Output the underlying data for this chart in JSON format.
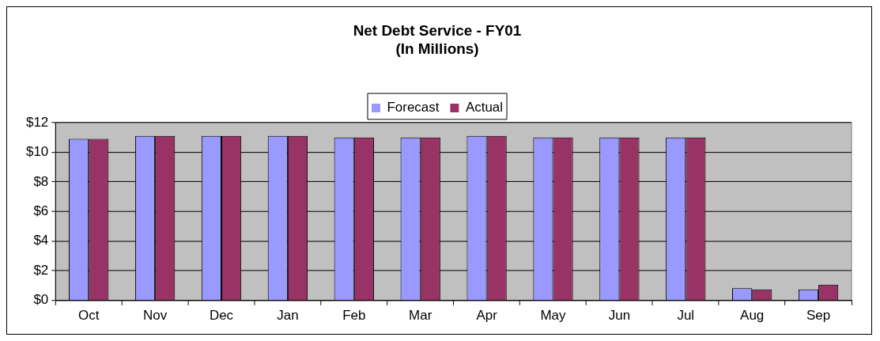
{
  "chart_data": {
    "type": "bar",
    "title": [
      "Net Debt Service - FY01",
      "(In Millions)"
    ],
    "categories": [
      "Oct",
      "Nov",
      "Dec",
      "Jan",
      "Feb",
      "Mar",
      "Apr",
      "May",
      "Jun",
      "Jul",
      "Aug",
      "Sep"
    ],
    "series": [
      {
        "name": "Forecast",
        "color": "#9999ff",
        "values": [
          10.9,
          11.1,
          11.1,
          11.1,
          11.0,
          11.0,
          11.1,
          11.0,
          11.0,
          11.0,
          0.83,
          0.75
        ]
      },
      {
        "name": "Actual",
        "color": "#993366",
        "values": [
          10.9,
          11.1,
          11.1,
          11.1,
          11.0,
          11.0,
          11.1,
          11.0,
          11.0,
          11.0,
          0.75,
          1.07
        ]
      }
    ],
    "ylim": [
      0,
      12
    ],
    "yticks": [
      {
        "value": 0,
        "label": "$0"
      },
      {
        "value": 2,
        "label": "$2"
      },
      {
        "value": 4,
        "label": "$4"
      },
      {
        "value": 6,
        "label": "$6"
      },
      {
        "value": 8,
        "label": "$8"
      },
      {
        "value": 10,
        "label": "$10"
      },
      {
        "value": 12,
        "label": "$12"
      }
    ],
    "grid": "y",
    "legend": "top"
  }
}
